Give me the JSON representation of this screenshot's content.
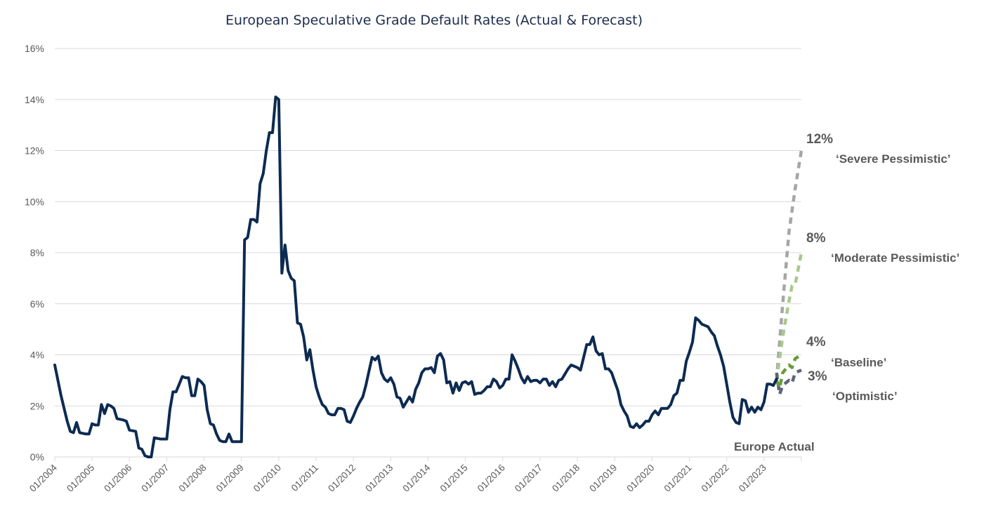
{
  "chart_data": {
    "type": "line",
    "title": "European Speculative Grade Default Rates (Actual & Forecast)",
    "xlabel": "",
    "ylabel": "",
    "ylim": [
      0,
      16
    ],
    "grid": true,
    "y_ticks": [
      "0%",
      "2%",
      "4%",
      "6%",
      "8%",
      "10%",
      "12%",
      "14%",
      "16%"
    ],
    "x_ticks": [
      "01/2004",
      "01/2005",
      "01/2006",
      "01/2007",
      "01/2008",
      "01/2009",
      "01/2010",
      "01/2011",
      "01/2012",
      "01/2013",
      "01/2014",
      "01/2015",
      "01/2016",
      "01/2017",
      "01/2018",
      "01/2019",
      "01/2020",
      "01/2021",
      "01/2022",
      "01/2023"
    ],
    "colors": {
      "actual": "#0d2b52",
      "severe": "#a6a6a6",
      "moderate": "#a9c98f",
      "baseline": "#6a9a3f",
      "optimistic": "#5f6578"
    },
    "actual_label": "Europe Actual",
    "series": [
      {
        "name": "Europe Actual",
        "key": "actual",
        "points": [
          [
            "2004-01",
            3.6
          ],
          [
            "2004-03",
            2.4
          ],
          [
            "2004-05",
            1.4
          ],
          [
            "2004-06",
            1.0
          ],
          [
            "2004-07",
            0.95
          ],
          [
            "2004-08",
            1.35
          ],
          [
            "2004-09",
            0.95
          ],
          [
            "2004-11",
            0.9
          ],
          [
            "2004-12",
            0.9
          ],
          [
            "2005-01",
            1.3
          ],
          [
            "2005-02",
            1.25
          ],
          [
            "2005-03",
            1.25
          ],
          [
            "2005-04",
            2.05
          ],
          [
            "2005-05",
            1.7
          ],
          [
            "2005-06",
            2.05
          ],
          [
            "2005-07",
            2.0
          ],
          [
            "2005-08",
            1.9
          ],
          [
            "2005-09",
            1.5
          ],
          [
            "2005-11",
            1.45
          ],
          [
            "2005-12",
            1.4
          ],
          [
            "2006-01",
            1.05
          ],
          [
            "2006-03",
            1.0
          ],
          [
            "2006-04",
            0.35
          ],
          [
            "2006-05",
            0.3
          ],
          [
            "2006-06",
            0.05
          ],
          [
            "2006-07",
            0.0
          ],
          [
            "2006-08",
            0.0
          ],
          [
            "2006-09",
            0.75
          ],
          [
            "2006-11",
            0.7
          ],
          [
            "2007-01",
            0.7
          ],
          [
            "2007-02",
            1.85
          ],
          [
            "2007-03",
            2.55
          ],
          [
            "2007-04",
            2.55
          ],
          [
            "2007-05",
            2.85
          ],
          [
            "2007-06",
            3.15
          ],
          [
            "2007-07",
            3.1
          ],
          [
            "2007-08",
            3.1
          ],
          [
            "2007-09",
            2.4
          ],
          [
            "2007-10",
            2.4
          ],
          [
            "2007-11",
            3.05
          ],
          [
            "2007-12",
            2.95
          ],
          [
            "2008-01",
            2.8
          ],
          [
            "2008-02",
            1.85
          ],
          [
            "2008-03",
            1.3
          ],
          [
            "2008-04",
            1.25
          ],
          [
            "2008-05",
            0.9
          ],
          [
            "2008-06",
            0.65
          ],
          [
            "2008-07",
            0.6
          ],
          [
            "2008-08",
            0.6
          ],
          [
            "2008-09",
            0.9
          ],
          [
            "2008-10",
            0.6
          ],
          [
            "2008-12",
            0.6
          ],
          [
            "2009-01",
            0.6
          ],
          [
            "2009-02",
            8.5
          ],
          [
            "2009-03",
            8.6
          ],
          [
            "2009-04",
            9.3
          ],
          [
            "2009-05",
            9.3
          ],
          [
            "2009-06",
            9.2
          ],
          [
            "2009-07",
            10.7
          ],
          [
            "2009-08",
            11.1
          ],
          [
            "2009-09",
            12.0
          ],
          [
            "2009-10",
            12.7
          ],
          [
            "2009-11",
            12.7
          ],
          [
            "2009-12",
            14.1
          ],
          [
            "2010-01",
            14.0
          ],
          [
            "2010-02",
            7.2
          ],
          [
            "2010-03",
            8.3
          ],
          [
            "2010-04",
            7.3
          ],
          [
            "2010-05",
            7.0
          ],
          [
            "2010-06",
            6.9
          ],
          [
            "2010-07",
            5.25
          ],
          [
            "2010-08",
            5.2
          ],
          [
            "2010-09",
            4.7
          ],
          [
            "2010-10",
            3.8
          ],
          [
            "2010-11",
            4.2
          ],
          [
            "2010-12",
            3.4
          ],
          [
            "2011-01",
            2.75
          ],
          [
            "2011-02",
            2.35
          ],
          [
            "2011-03",
            2.05
          ],
          [
            "2011-04",
            1.95
          ],
          [
            "2011-05",
            1.7
          ],
          [
            "2011-06",
            1.65
          ],
          [
            "2011-07",
            1.65
          ],
          [
            "2011-08",
            1.9
          ],
          [
            "2011-09",
            1.9
          ],
          [
            "2011-10",
            1.85
          ],
          [
            "2011-11",
            1.4
          ],
          [
            "2011-12",
            1.35
          ],
          [
            "2012-01",
            1.6
          ],
          [
            "2012-02",
            1.9
          ],
          [
            "2012-03",
            2.15
          ],
          [
            "2012-04",
            2.35
          ],
          [
            "2012-05",
            2.8
          ],
          [
            "2012-06",
            3.35
          ],
          [
            "2012-07",
            3.9
          ],
          [
            "2012-08",
            3.8
          ],
          [
            "2012-09",
            3.95
          ],
          [
            "2012-10",
            3.3
          ],
          [
            "2012-11",
            3.05
          ],
          [
            "2012-12",
            2.95
          ],
          [
            "2013-01",
            3.1
          ],
          [
            "2013-02",
            2.85
          ],
          [
            "2013-03",
            2.35
          ],
          [
            "2013-04",
            2.3
          ],
          [
            "2013-05",
            1.95
          ],
          [
            "2013-06",
            2.15
          ],
          [
            "2013-07",
            2.35
          ],
          [
            "2013-08",
            2.15
          ],
          [
            "2013-09",
            2.65
          ],
          [
            "2013-10",
            2.9
          ],
          [
            "2013-11",
            3.3
          ],
          [
            "2013-12",
            3.45
          ],
          [
            "2014-01",
            3.45
          ],
          [
            "2014-02",
            3.5
          ],
          [
            "2014-03",
            3.3
          ],
          [
            "2014-04",
            3.95
          ],
          [
            "2014-05",
            4.05
          ],
          [
            "2014-06",
            3.8
          ],
          [
            "2014-07",
            2.9
          ],
          [
            "2014-08",
            2.95
          ],
          [
            "2014-09",
            2.5
          ],
          [
            "2014-10",
            2.9
          ],
          [
            "2014-11",
            2.6
          ],
          [
            "2014-12",
            2.9
          ],
          [
            "2015-01",
            2.95
          ],
          [
            "2015-02",
            2.85
          ],
          [
            "2015-03",
            2.95
          ],
          [
            "2015-04",
            2.45
          ],
          [
            "2015-05",
            2.5
          ],
          [
            "2015-06",
            2.5
          ],
          [
            "2015-07",
            2.6
          ],
          [
            "2015-08",
            2.75
          ],
          [
            "2015-09",
            2.75
          ],
          [
            "2015-10",
            3.05
          ],
          [
            "2015-11",
            2.95
          ],
          [
            "2015-12",
            2.7
          ],
          [
            "2016-01",
            2.8
          ],
          [
            "2016-02",
            3.05
          ],
          [
            "2016-03",
            3.05
          ],
          [
            "2016-04",
            4.0
          ],
          [
            "2016-05",
            3.75
          ],
          [
            "2016-06",
            3.45
          ],
          [
            "2016-07",
            3.1
          ],
          [
            "2016-08",
            2.9
          ],
          [
            "2016-09",
            3.15
          ],
          [
            "2016-10",
            2.95
          ],
          [
            "2016-11",
            3.0
          ],
          [
            "2016-12",
            3.0
          ],
          [
            "2017-01",
            2.9
          ],
          [
            "2017-02",
            3.05
          ],
          [
            "2017-03",
            3.05
          ],
          [
            "2017-04",
            2.8
          ],
          [
            "2017-05",
            2.95
          ],
          [
            "2017-06",
            2.75
          ],
          [
            "2017-07",
            3.0
          ],
          [
            "2017-08",
            3.05
          ],
          [
            "2017-09",
            3.25
          ],
          [
            "2017-10",
            3.45
          ],
          [
            "2017-11",
            3.6
          ],
          [
            "2017-12",
            3.55
          ],
          [
            "2018-01",
            3.5
          ],
          [
            "2018-02",
            3.4
          ],
          [
            "2018-03",
            3.9
          ],
          [
            "2018-04",
            4.4
          ],
          [
            "2018-05",
            4.4
          ],
          [
            "2018-06",
            4.7
          ],
          [
            "2018-07",
            4.15
          ],
          [
            "2018-08",
            4.0
          ],
          [
            "2018-09",
            4.05
          ],
          [
            "2018-10",
            3.45
          ],
          [
            "2018-11",
            3.45
          ],
          [
            "2018-12",
            3.3
          ],
          [
            "2019-01",
            2.95
          ],
          [
            "2019-02",
            2.6
          ],
          [
            "2019-03",
            2.05
          ],
          [
            "2019-04",
            1.8
          ],
          [
            "2019-05",
            1.6
          ],
          [
            "2019-06",
            1.2
          ],
          [
            "2019-07",
            1.15
          ],
          [
            "2019-08",
            1.3
          ],
          [
            "2019-09",
            1.15
          ],
          [
            "2019-10",
            1.25
          ],
          [
            "2019-11",
            1.4
          ],
          [
            "2019-12",
            1.4
          ],
          [
            "2020-01",
            1.65
          ],
          [
            "2020-02",
            1.8
          ],
          [
            "2020-03",
            1.65
          ],
          [
            "2020-04",
            1.9
          ],
          [
            "2020-05",
            1.9
          ],
          [
            "2020-06",
            1.9
          ],
          [
            "2020-07",
            2.05
          ],
          [
            "2020-08",
            2.4
          ],
          [
            "2020-09",
            2.5
          ],
          [
            "2020-10",
            3.0
          ],
          [
            "2020-11",
            3.0
          ],
          [
            "2020-12",
            3.75
          ],
          [
            "2021-01",
            4.1
          ],
          [
            "2021-02",
            4.5
          ],
          [
            "2021-03",
            5.45
          ],
          [
            "2021-04",
            5.35
          ],
          [
            "2021-05",
            5.2
          ],
          [
            "2021-06",
            5.15
          ],
          [
            "2021-07",
            5.1
          ],
          [
            "2021-08",
            4.9
          ],
          [
            "2021-09",
            4.75
          ],
          [
            "2021-10",
            4.35
          ],
          [
            "2021-11",
            4.0
          ],
          [
            "2021-12",
            3.55
          ],
          [
            "2022-01",
            2.85
          ],
          [
            "2022-02",
            2.15
          ],
          [
            "2022-03",
            1.55
          ],
          [
            "2022-04",
            1.35
          ],
          [
            "2022-05",
            1.3
          ],
          [
            "2022-06",
            2.25
          ],
          [
            "2022-07",
            2.2
          ],
          [
            "2022-08",
            1.75
          ],
          [
            "2022-09",
            1.95
          ],
          [
            "2022-10",
            1.75
          ],
          [
            "2022-11",
            1.95
          ],
          [
            "2022-12",
            1.85
          ],
          [
            "2023-01",
            2.15
          ],
          [
            "2023-02",
            2.85
          ],
          [
            "2023-03",
            2.85
          ],
          [
            "2023-04",
            2.8
          ],
          [
            "2023-05",
            3.05
          ]
        ]
      },
      {
        "name": "'Severe Pessimistic'",
        "key": "severe",
        "label": "‘Severe Pessimistic’",
        "end_label": "12%",
        "points": [
          [
            "2023-05",
            3.0
          ],
          [
            "2023-07",
            6.0
          ],
          [
            "2023-09",
            8.8
          ],
          [
            "2023-11",
            10.5
          ],
          [
            "2024-01",
            12.0
          ]
        ]
      },
      {
        "name": "'Moderate Pessimistic'",
        "key": "moderate",
        "label": "‘Moderate Pessimistic’",
        "end_label": "8%",
        "points": [
          [
            "2023-05",
            3.0
          ],
          [
            "2023-07",
            4.7
          ],
          [
            "2023-09",
            6.1
          ],
          [
            "2023-10",
            6.7
          ],
          [
            "2023-11",
            6.75
          ],
          [
            "2024-01",
            8.0
          ]
        ]
      },
      {
        "name": "'Baseline'",
        "key": "baseline",
        "label": "‘Baseline’",
        "end_label": "4%",
        "points": [
          [
            "2023-05",
            3.0
          ],
          [
            "2023-06",
            2.7
          ],
          [
            "2023-07",
            3.3
          ],
          [
            "2023-09",
            3.6
          ],
          [
            "2023-10",
            3.5
          ],
          [
            "2023-11",
            3.85
          ],
          [
            "2024-01",
            4.0
          ]
        ]
      },
      {
        "name": "'Optimistic'",
        "key": "optimistic",
        "label": "‘Optimistic’",
        "end_label": "3%",
        "points": [
          [
            "2023-05",
            3.3
          ],
          [
            "2023-06",
            2.45
          ],
          [
            "2023-07",
            2.8
          ],
          [
            "2023-09",
            3.0
          ],
          [
            "2023-10",
            2.9
          ],
          [
            "2023-11",
            3.3
          ],
          [
            "2024-01",
            3.4
          ]
        ]
      }
    ]
  }
}
